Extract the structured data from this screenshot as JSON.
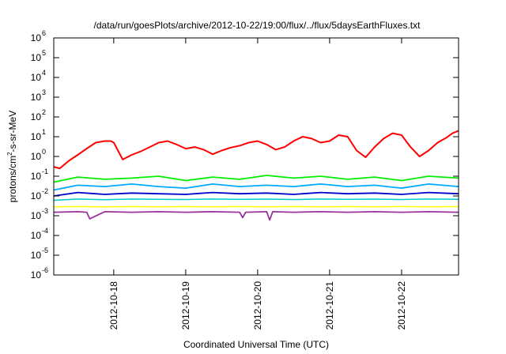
{
  "chart_data": {
    "type": "line",
    "title": "/data/run/goesPlots/archive/2012-10-22/19:00/flux/../flux/5daysEarthFluxes.txt",
    "xlabel": "Coordinated Universal Time (UTC)",
    "ylabel": {
      "pre": "protons/cm",
      "sup": "2",
      "post": "-s-sr-MeV"
    },
    "yscale": "log",
    "ylim": [
      1e-06,
      1000000.0
    ],
    "y_ticks": [
      {
        "exp": -6,
        "label": "10",
        "sup": "-6"
      },
      {
        "exp": -5,
        "label": "10",
        "sup": "-5"
      },
      {
        "exp": -4,
        "label": "10",
        "sup": "-4"
      },
      {
        "exp": -3,
        "label": "10",
        "sup": "-3"
      },
      {
        "exp": -2,
        "label": "10",
        "sup": "-2"
      },
      {
        "exp": -1,
        "label": "10",
        "sup": "-1"
      },
      {
        "exp": 0,
        "label": "10",
        "sup": "0"
      },
      {
        "exp": 1,
        "label": "10",
        "sup": "1"
      },
      {
        "exp": 2,
        "label": "10",
        "sup": "2"
      },
      {
        "exp": 3,
        "label": "10",
        "sup": "3"
      },
      {
        "exp": 4,
        "label": "10",
        "sup": "4"
      },
      {
        "exp": 5,
        "label": "10",
        "sup": "5"
      },
      {
        "exp": 6,
        "label": "10",
        "sup": "6"
      }
    ],
    "xlim": [
      "2012-10-17 04:00",
      "2012-10-22 19:00"
    ],
    "x_ticks": [
      "2012-10-18",
      "2012-10-19",
      "2012-10-20",
      "2012-10-21",
      "2012-10-22"
    ],
    "grid": false,
    "series": [
      {
        "color": "#ff0000",
        "width": 2,
        "x": [
          "2012-10-17 04:00",
          "2012-10-17 06:00",
          "2012-10-17 09:00",
          "2012-10-17 12:00",
          "2012-10-17 15:00",
          "2012-10-17 18:00",
          "2012-10-17 21:00",
          "2012-10-17 23:00",
          "2012-10-18 00:00",
          "2012-10-18 03:00",
          "2012-10-18 06:00",
          "2012-10-18 09:00",
          "2012-10-18 12:00",
          "2012-10-18 15:00",
          "2012-10-18 18:00",
          "2012-10-18 21:00",
          "2012-10-19 00:00",
          "2012-10-19 03:00",
          "2012-10-19 06:00",
          "2012-10-19 09:00",
          "2012-10-19 12:00",
          "2012-10-19 15:00",
          "2012-10-19 18:00",
          "2012-10-19 21:00",
          "2012-10-20 00:00",
          "2012-10-20 03:00",
          "2012-10-20 06:00",
          "2012-10-20 09:00",
          "2012-10-20 12:00",
          "2012-10-20 15:00",
          "2012-10-20 18:00",
          "2012-10-20 21:00",
          "2012-10-21 00:00",
          "2012-10-21 03:00",
          "2012-10-21 06:00",
          "2012-10-21 09:00",
          "2012-10-21 12:00",
          "2012-10-21 15:00",
          "2012-10-21 18:00",
          "2012-10-21 21:00",
          "2012-10-22 00:00",
          "2012-10-22 03:00",
          "2012-10-22 06:00",
          "2012-10-22 09:00",
          "2012-10-22 12:00",
          "2012-10-22 15:00",
          "2012-10-22 17:00",
          "2012-10-22 19:00"
        ],
        "y": [
          0.3,
          0.25,
          0.6,
          1.2,
          2.5,
          5,
          6,
          6,
          5,
          0.7,
          1.2,
          1.8,
          3,
          5,
          6,
          4,
          2.5,
          3,
          2.2,
          1.3,
          2,
          2.8,
          3.5,
          5,
          6,
          4,
          2.2,
          3,
          6,
          10,
          8,
          5,
          6,
          12,
          10,
          2,
          0.9,
          3,
          8,
          15,
          12,
          3,
          1,
          2,
          5,
          9,
          15,
          20
        ]
      },
      {
        "color": "#00ee00",
        "width": 1.8,
        "x": [
          "2012-10-17 04:00",
          "2012-10-17 12:00",
          "2012-10-17 21:00",
          "2012-10-18 06:00",
          "2012-10-18 15:00",
          "2012-10-19 00:00",
          "2012-10-19 09:00",
          "2012-10-19 18:00",
          "2012-10-20 03:00",
          "2012-10-20 12:00",
          "2012-10-20 21:00",
          "2012-10-21 06:00",
          "2012-10-21 15:00",
          "2012-10-22 00:00",
          "2012-10-22 09:00",
          "2012-10-22 19:00"
        ],
        "y": [
          0.05,
          0.09,
          0.07,
          0.08,
          0.1,
          0.06,
          0.09,
          0.07,
          0.11,
          0.08,
          0.1,
          0.07,
          0.09,
          0.06,
          0.1,
          0.08
        ]
      },
      {
        "color": "#00aaff",
        "width": 1.8,
        "x": [
          "2012-10-17 04:00",
          "2012-10-17 12:00",
          "2012-10-17 21:00",
          "2012-10-18 06:00",
          "2012-10-18 15:00",
          "2012-10-19 00:00",
          "2012-10-19 09:00",
          "2012-10-19 18:00",
          "2012-10-20 03:00",
          "2012-10-20 12:00",
          "2012-10-20 21:00",
          "2012-10-21 06:00",
          "2012-10-21 15:00",
          "2012-10-22 00:00",
          "2012-10-22 09:00",
          "2012-10-22 19:00"
        ],
        "y": [
          0.02,
          0.035,
          0.03,
          0.04,
          0.03,
          0.025,
          0.04,
          0.03,
          0.035,
          0.03,
          0.04,
          0.03,
          0.035,
          0.025,
          0.04,
          0.03
        ]
      },
      {
        "color": "#0000cc",
        "width": 1.8,
        "x": [
          "2012-10-17 04:00",
          "2012-10-17 12:00",
          "2012-10-17 21:00",
          "2012-10-18 06:00",
          "2012-10-18 15:00",
          "2012-10-19 00:00",
          "2012-10-19 09:00",
          "2012-10-19 18:00",
          "2012-10-20 03:00",
          "2012-10-20 12:00",
          "2012-10-20 21:00",
          "2012-10-21 06:00",
          "2012-10-21 15:00",
          "2012-10-22 00:00",
          "2012-10-22 09:00",
          "2012-10-22 19:00"
        ],
        "y": [
          0.01,
          0.015,
          0.012,
          0.014,
          0.013,
          0.012,
          0.015,
          0.013,
          0.014,
          0.012,
          0.015,
          0.013,
          0.014,
          0.012,
          0.015,
          0.013
        ]
      },
      {
        "color": "#00cccc",
        "width": 1.5,
        "x": [
          "2012-10-17 04:00",
          "2012-10-17 12:00",
          "2012-10-17 21:00",
          "2012-10-18 06:00",
          "2012-10-18 15:00",
          "2012-10-19 00:00",
          "2012-10-19 09:00",
          "2012-10-19 18:00",
          "2012-10-20 03:00",
          "2012-10-20 12:00",
          "2012-10-20 21:00",
          "2012-10-21 06:00",
          "2012-10-21 15:00",
          "2012-10-22 00:00",
          "2012-10-22 09:00",
          "2012-10-22 19:00"
        ],
        "y": [
          0.006,
          0.007,
          0.0065,
          0.007,
          0.0068,
          0.0066,
          0.007,
          0.0067,
          0.0069,
          0.0066,
          0.007,
          0.0067,
          0.0069,
          0.0066,
          0.007,
          0.0068
        ]
      },
      {
        "color": "#ffff00",
        "width": 1.5,
        "x": [
          "2012-10-17 04:00",
          "2012-10-17 12:00",
          "2012-10-17 21:00",
          "2012-10-18 06:00",
          "2012-10-18 15:00",
          "2012-10-19 00:00",
          "2012-10-19 09:00",
          "2012-10-19 18:00",
          "2012-10-20 03:00",
          "2012-10-20 12:00",
          "2012-10-20 21:00",
          "2012-10-21 06:00",
          "2012-10-21 15:00",
          "2012-10-22 00:00",
          "2012-10-22 09:00",
          "2012-10-22 19:00"
        ],
        "y": [
          0.0028,
          0.0029,
          0.0028,
          0.0029,
          0.0028,
          0.0029,
          0.0028,
          0.0029,
          0.0028,
          0.0029,
          0.0028,
          0.0029,
          0.0028,
          0.0029,
          0.0028,
          0.0029
        ]
      },
      {
        "color": "#993399",
        "width": 1.8,
        "x": [
          "2012-10-17 04:00",
          "2012-10-17 12:00",
          "2012-10-17 15:00",
          "2012-10-17 16:00",
          "2012-10-17 21:00",
          "2012-10-18 06:00",
          "2012-10-18 15:00",
          "2012-10-19 00:00",
          "2012-10-19 09:00",
          "2012-10-19 18:00",
          "2012-10-19 19:00",
          "2012-10-19 20:00",
          "2012-10-20 03:00",
          "2012-10-20 04:00",
          "2012-10-20 05:00",
          "2012-10-20 12:00",
          "2012-10-20 21:00",
          "2012-10-21 06:00",
          "2012-10-21 15:00",
          "2012-10-22 00:00",
          "2012-10-22 09:00",
          "2012-10-22 19:00"
        ],
        "y": [
          0.0015,
          0.0016,
          0.0015,
          0.0007,
          0.0016,
          0.0015,
          0.0016,
          0.0015,
          0.0016,
          0.0015,
          0.0008,
          0.0015,
          0.0016,
          0.0006,
          0.0016,
          0.0015,
          0.0016,
          0.0015,
          0.0016,
          0.0015,
          0.0016,
          0.0015
        ]
      }
    ]
  }
}
